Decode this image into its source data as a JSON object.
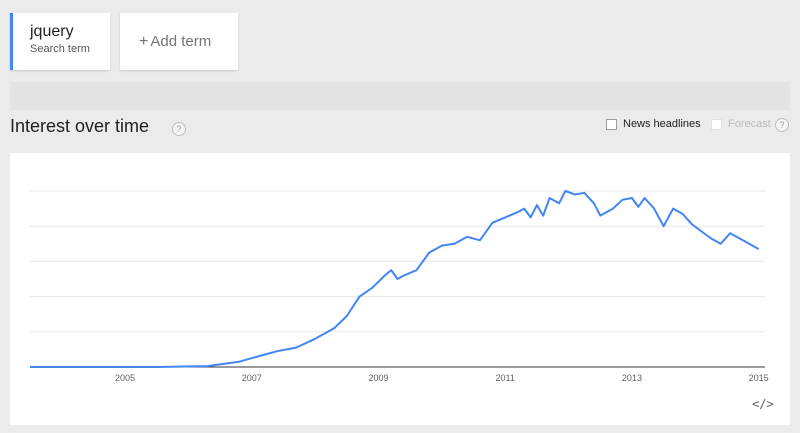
{
  "terms": [
    {
      "name": "jquery",
      "subtitle": "Search term",
      "color": "#4285f4"
    }
  ],
  "add_term": {
    "plus": "+",
    "label": "Add term"
  },
  "section": {
    "title": "Interest over time",
    "help_glyph": "?"
  },
  "options": {
    "news_headlines": "News headlines",
    "forecast": "Forecast",
    "help_glyph": "?"
  },
  "embed": {
    "glyph": "</>"
  },
  "chart_data": {
    "type": "line",
    "x_ticks": [
      "2005",
      "2007",
      "2009",
      "2011",
      "2013",
      "2015"
    ],
    "x_range": [
      2004.0,
      2015.6
    ],
    "ylim": [
      0,
      100
    ],
    "grid": true,
    "series": [
      {
        "color": "#4285f4",
        "points": [
          [
            2004.0,
            0
          ],
          [
            2006.0,
            0
          ],
          [
            2006.8,
            0.5
          ],
          [
            2007.0,
            1.5
          ],
          [
            2007.3,
            3
          ],
          [
            2007.6,
            6
          ],
          [
            2007.9,
            9
          ],
          [
            2008.2,
            11
          ],
          [
            2008.5,
            16
          ],
          [
            2008.8,
            22
          ],
          [
            2009.0,
            29
          ],
          [
            2009.2,
            40
          ],
          [
            2009.4,
            45
          ],
          [
            2009.6,
            52
          ],
          [
            2009.7,
            55
          ],
          [
            2009.8,
            50
          ],
          [
            2009.9,
            52
          ],
          [
            2010.1,
            55
          ],
          [
            2010.3,
            65
          ],
          [
            2010.5,
            69
          ],
          [
            2010.7,
            70
          ],
          [
            2010.9,
            74
          ],
          [
            2011.1,
            72
          ],
          [
            2011.3,
            82
          ],
          [
            2011.5,
            85
          ],
          [
            2011.7,
            88
          ],
          [
            2011.8,
            90
          ],
          [
            2011.9,
            85
          ],
          [
            2012.0,
            92
          ],
          [
            2012.1,
            86
          ],
          [
            2012.2,
            96
          ],
          [
            2012.35,
            93
          ],
          [
            2012.45,
            100
          ],
          [
            2012.6,
            98
          ],
          [
            2012.75,
            99
          ],
          [
            2012.9,
            93
          ],
          [
            2013.0,
            86
          ],
          [
            2013.2,
            90
          ],
          [
            2013.35,
            95
          ],
          [
            2013.5,
            96
          ],
          [
            2013.6,
            91
          ],
          [
            2013.7,
            96
          ],
          [
            2013.85,
            90
          ],
          [
            2014.0,
            80
          ],
          [
            2014.15,
            90
          ],
          [
            2014.3,
            87
          ],
          [
            2014.45,
            81
          ],
          [
            2014.6,
            77
          ],
          [
            2014.75,
            73
          ],
          [
            2014.9,
            70
          ],
          [
            2015.05,
            76
          ],
          [
            2015.2,
            73
          ],
          [
            2015.35,
            70
          ],
          [
            2015.5,
            67
          ]
        ]
      }
    ]
  }
}
